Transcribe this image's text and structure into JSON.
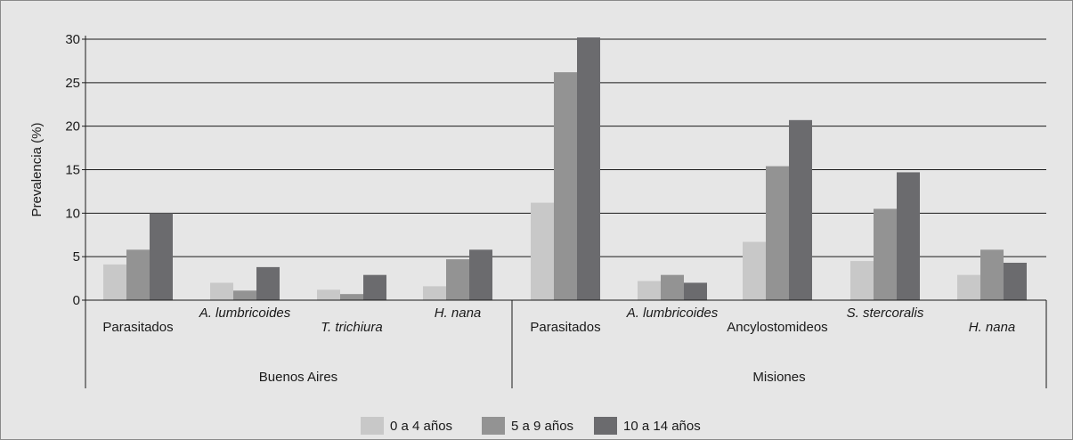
{
  "chart_data": {
    "type": "bar",
    "ylabel": "Prevalencia (%)",
    "ylim": [
      0,
      30
    ],
    "yticks": [
      0,
      5,
      10,
      15,
      20,
      25,
      30
    ],
    "grid": true,
    "legend_position": "bottom",
    "groups": [
      {
        "label": "Buenos Aires",
        "categories": [
          {
            "label": "Parasitados",
            "italic": false
          },
          {
            "label": "A. lumbricoides",
            "italic": true
          },
          {
            "label": "T. trichiura",
            "italic": true
          },
          {
            "label": "H. nana",
            "italic": true
          }
        ]
      },
      {
        "label": "Misiones",
        "categories": [
          {
            "label": "Parasitados",
            "italic": false
          },
          {
            "label": "A. lumbricoides",
            "italic": true
          },
          {
            "label": "Ancylostomideos",
            "italic": false
          },
          {
            "label": "S. stercoralis",
            "italic": true
          },
          {
            "label": "H. nana",
            "italic": true
          }
        ]
      }
    ],
    "series": [
      {
        "name": "0 a 4 años",
        "color": "#c8c8c8",
        "values": [
          4.1,
          2.0,
          1.2,
          1.6,
          11.2,
          2.2,
          6.7,
          4.5,
          2.9
        ]
      },
      {
        "name": "5 a 9 años",
        "color": "#939393",
        "values": [
          5.8,
          1.1,
          0.7,
          4.7,
          26.2,
          2.9,
          15.4,
          10.5,
          5.8
        ]
      },
      {
        "name": "10 a 14 años",
        "color": "#6b6b6e",
        "values": [
          10.0,
          3.8,
          2.9,
          5.8,
          30.2,
          2.0,
          20.7,
          14.7,
          4.3
        ]
      }
    ]
  }
}
